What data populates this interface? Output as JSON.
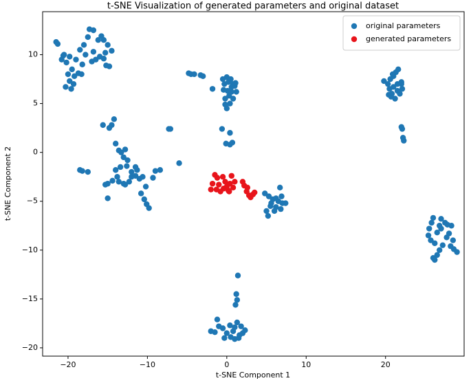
{
  "chart_data": {
    "type": "scatter",
    "title": "t-SNE Visualization of generated parameters and original dataset",
    "x_label": "t-SNE Component 1",
    "y_label": "t-SNE Component 2",
    "xlim": [
      -23.2,
      29.9
    ],
    "ylim": [
      -20.85,
      14.4
    ],
    "xticks": [
      {
        "value": -20,
        "label": "−20"
      },
      {
        "value": -10,
        "label": "−10"
      },
      0,
      10,
      20
    ],
    "yticks": [
      {
        "value": -20,
        "label": "−20"
      },
      {
        "value": -15,
        "label": "−15"
      },
      {
        "value": -10,
        "label": "−10"
      },
      {
        "value": -5,
        "label": "−5"
      },
      0,
      5,
      10
    ],
    "legend": "upper right",
    "series": [
      {
        "name": "original parameters",
        "color": "#1f77b4",
        "x": [
          -21.5,
          -21.3,
          -20.8,
          -20.5,
          -20.2,
          -19.8,
          -19.5,
          -19.2,
          -19.8,
          -20.3,
          -19.6,
          -19.3,
          -18.7,
          -18.3,
          -18.5,
          -18.0,
          -17.5,
          -17.3,
          -16.8,
          -16.2,
          -15.8,
          -15.5,
          -15.0,
          -14.5,
          -15.3,
          -16.0,
          -16.5,
          -17.0,
          -16.8,
          -15.5,
          -14.8,
          -15.2,
          -17.8,
          -18.2,
          -20.0,
          -19.0,
          -20.6,
          -4.8,
          -4.5,
          -4.1,
          -3.3,
          -3.0,
          -1.8,
          -0.5,
          -0.3,
          0,
          0.2,
          0.5,
          0.8,
          1.0,
          1.2,
          0.6,
          0.1,
          -0.4,
          0.3,
          0.8,
          -0.2,
          0.4,
          -0.2,
          0,
          1.1,
          0.6,
          -0.6,
          0.4,
          -0.1,
          0.4,
          0.7,
          -18.5,
          -18.2,
          -17.5,
          -15.6,
          -14.8,
          -14.5,
          -14.2,
          -14.0,
          -13.6,
          -13.3,
          -12.8,
          -13.0,
          -12.5,
          -12.6,
          -13.4,
          -14.0,
          -13.8,
          -14.4,
          -15.0,
          -15.3,
          -15.0,
          -13.6,
          -13.0,
          -12.3,
          -12.0,
          -11.5,
          -11.0,
          -10.6,
          -11.3,
          -11.5,
          -12.0,
          -10.2,
          -10.8,
          -10.4,
          -10.1,
          -9.8,
          -9.3,
          -9.0,
          -8.4,
          -7.3,
          -7.1,
          -6.0,
          -12.8,
          4.8,
          5.3,
          5.8,
          6.2,
          6.7,
          6.5,
          7.0,
          7.4,
          6.8,
          6.2,
          5.5,
          5.0,
          5.2,
          5.6,
          6.0,
          6.9,
          19.8,
          20.3,
          20.5,
          20.8,
          21.0,
          21.3,
          21.6,
          21.5,
          22.0,
          22.1,
          21.8,
          21.2,
          20.7,
          20.4,
          21.0,
          22.0,
          21.5,
          20.9,
          20.6,
          22.0,
          22.1,
          22.2,
          22.3,
          25.5,
          25.8,
          26.0,
          25.4,
          25.7,
          26.2,
          26.5,
          27.0,
          27.5,
          27.8,
          28.3,
          28.0,
          27.7,
          28.5,
          28.2,
          28.6,
          29.0,
          27.2,
          26.8,
          26.5,
          26.0,
          26.2,
          27.0,
          26.8,
          1.4,
          1.2,
          1.3,
          1.1,
          -2.0,
          -1.5,
          -1.0,
          -1.2,
          -0.5,
          0,
          0.5,
          1.0,
          1.5,
          2.0,
          2.3,
          1.8,
          1.3,
          1.0,
          0.4,
          -0.3,
          0.8,
          1.6
        ],
        "y": [
          11.3,
          11.1,
          9.5,
          10,
          9.2,
          9.8,
          8.5,
          7.8,
          7.3,
          6.7,
          6.5,
          7.0,
          8.1,
          8.0,
          10.5,
          11.0,
          11.8,
          12.6,
          12.5,
          11.5,
          11.9,
          11.5,
          11.0,
          10.4,
          10.2,
          9.8,
          9.5,
          9.3,
          10.3,
          9.6,
          8.8,
          8.9,
          10.0,
          9.0,
          8.0,
          9.5,
          9.9,
          8.1,
          8.0,
          8.0,
          7.9,
          7.8,
          6.5,
          7.5,
          7.0,
          7.7,
          7.2,
          7.5,
          7.0,
          6.8,
          6.2,
          6.2,
          6.3,
          6.4,
          5.8,
          5.5,
          5.5,
          5.0,
          4.9,
          4.5,
          7.1,
          6.7,
          2.4,
          2.0,
          0.9,
          0.8,
          1.0,
          -1.8,
          -1.9,
          -2.0,
          2.8,
          2.5,
          2.8,
          3.4,
          0.9,
          0.2,
          0,
          0.3,
          -0.5,
          -0.8,
          -1.4,
          -1.5,
          -1.8,
          -2.5,
          -2.9,
          -3.2,
          -3.3,
          -4.7,
          -3.0,
          -3.2,
          -3.0,
          -2.5,
          -2.4,
          -2.7,
          -2.5,
          -1.8,
          -1.5,
          -2.0,
          -3.5,
          -4.2,
          -4.8,
          -5.3,
          -5.7,
          -2.6,
          -1.9,
          -1.8,
          2.4,
          2.4,
          -1.1,
          -3.3,
          -4.2,
          -4.5,
          -4.8,
          -4.7,
          -3.6,
          -5.0,
          -5.2,
          -5.2,
          -5.8,
          -5.6,
          -5.5,
          -6.0,
          -6.5,
          -5.2,
          -6.0,
          -4.5,
          7.3,
          7.0,
          6.5,
          6.0,
          7.8,
          8.2,
          8.5,
          7.0,
          7.2,
          6.5,
          6.0,
          5.5,
          5.7,
          5.9,
          6.7,
          7.0,
          6.3,
          8.0,
          7.5,
          2.6,
          2.4,
          1.5,
          1.2,
          -7.8,
          -7.2,
          -6.7,
          -8.5,
          -9.0,
          -9.3,
          -8.2,
          -7.8,
          -7.2,
          -7.4,
          -7.5,
          -8.3,
          -8.7,
          -9.0,
          -9.6,
          -9.9,
          -10.2,
          -9.5,
          -10.0,
          -10.5,
          -10.8,
          -11.0,
          -6.8,
          -7.5,
          -12.6,
          -14.5,
          -15.1,
          -15.6,
          -18.3,
          -18.4,
          -17.8,
          -17.1,
          -18.0,
          -18.5,
          -18.9,
          -19.1,
          -19.0,
          -18.5,
          -18.2,
          -17.8,
          -17.4,
          -17.9,
          -17.7,
          -19.0,
          -18.3,
          -18.7
        ]
      },
      {
        "name": "generated parameters",
        "color": "#e8141b",
        "x": [
          -2.0,
          -1.8,
          -1.5,
          -1.2,
          -1.0,
          -0.8,
          -0.5,
          -0.2,
          0,
          0.2,
          0.4,
          0.6,
          0.8,
          1.0,
          -1.3,
          -0.4,
          0.3,
          2.0,
          2.2,
          2.5,
          2.8,
          3.0,
          3.3,
          3.5,
          2.6
        ],
        "y": [
          -3.8,
          -3.2,
          -2.3,
          -2.6,
          -3.3,
          -4.0,
          -2.5,
          -3.0,
          -3.5,
          -3.9,
          -3.2,
          -2.4,
          -3.6,
          -3.0,
          -3.8,
          -3.7,
          -4.0,
          -3.0,
          -3.4,
          -4.0,
          -4.4,
          -4.6,
          -4.3,
          -4.1,
          -3.6
        ]
      }
    ]
  }
}
